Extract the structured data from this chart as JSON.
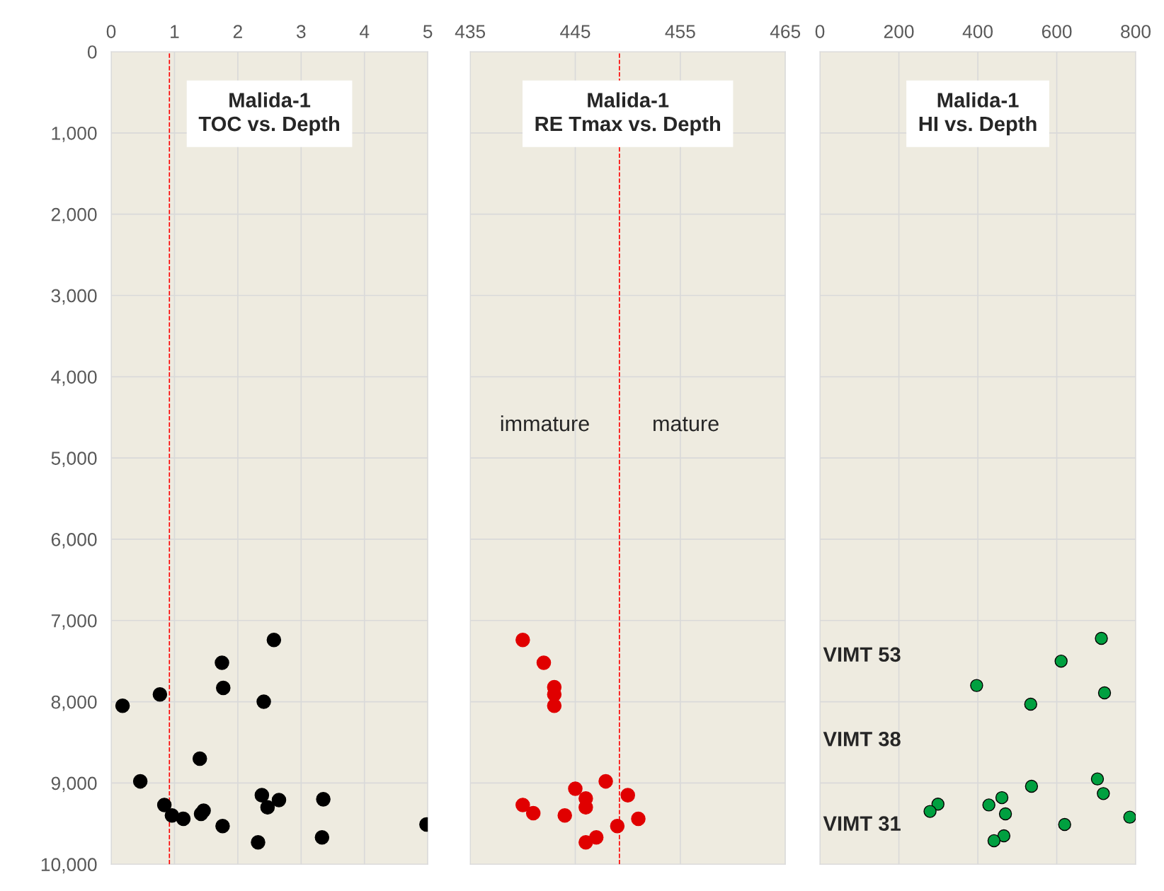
{
  "chart_data": [
    {
      "type": "scatter",
      "title": "Malida-1\nTOC vs. Depth",
      "series": [
        {
          "color": "#000000",
          "x": [
            2.57,
            1.75,
            1.77,
            0.77,
            0.18,
            2.41,
            1.4,
            0.46,
            2.38,
            2.65,
            3.35,
            2.47,
            0.84,
            0.96,
            1.14,
            1.46,
            1.42,
            1.76,
            2.32,
            3.33,
            4.98
          ],
          "values": [
            7240,
            7520,
            7830,
            7910,
            8050,
            8000,
            8700,
            8980,
            9150,
            9210,
            9200,
            9300,
            9270,
            9400,
            9440,
            9340,
            9380,
            9530,
            9730,
            9670,
            9510
          ]
        }
      ],
      "xlim": [
        0,
        5
      ],
      "xticks": [
        0,
        1,
        2,
        3,
        4,
        5
      ],
      "ylim": [
        10000,
        0
      ],
      "yticks": [
        0,
        {
          "value": 1000,
          "label": "1,000"
        },
        {
          "value": 2000,
          "label": "2,000"
        },
        {
          "value": 3000,
          "label": "3,000"
        },
        {
          "value": 4000,
          "label": "4,000"
        },
        {
          "value": 5000,
          "label": "5,000"
        },
        {
          "value": 6000,
          "label": "6,000"
        },
        {
          "value": 7000,
          "label": "7,000"
        },
        {
          "value": 8000,
          "label": "8,000"
        },
        {
          "value": 9000,
          "label": "9,000"
        },
        {
          "value": 10000,
          "label": "10,000"
        }
      ],
      "ref_lines": [
        {
          "axis": "x",
          "value": 0.92,
          "color": "#ff0000",
          "line_style": "dashed"
        }
      ],
      "grid": true,
      "marker": "circle",
      "legend": false
    },
    {
      "type": "scatter",
      "title": "Malida-1\nRE Tmax vs. Depth",
      "series": [
        {
          "color": "#e00000",
          "x": [
            440,
            442,
            443,
            443,
            443,
            447.9,
            445,
            446,
            446,
            450,
            440,
            441,
            444,
            451,
            449,
            447,
            446
          ],
          "values": [
            7240,
            7520,
            7820,
            7910,
            8050,
            8980,
            9070,
            9190,
            9300,
            9150,
            9270,
            9370,
            9400,
            9440,
            9530,
            9670,
            9730
          ]
        }
      ],
      "xlim": [
        435,
        465
      ],
      "xticks": [
        435,
        445,
        455,
        465
      ],
      "ylim": [
        10000,
        0
      ],
      "yticks": [
        0,
        1000,
        2000,
        3000,
        4000,
        5000,
        6000,
        7000,
        8000,
        9000,
        10000
      ],
      "tick_labels": "x",
      "ref_lines": [
        {
          "axis": "x",
          "value": 449.2,
          "color": "#ff0000",
          "line_style": "dashed"
        }
      ],
      "annotations": [
        "immature",
        "mature"
      ],
      "grid": true,
      "marker": "circle",
      "legend": false
    },
    {
      "type": "scatter",
      "title": "Malida-1\nHI vs. Depth",
      "series": [
        {
          "color": "#00a040",
          "x": [
            713,
            611,
            397,
            721,
            534,
            703,
            536,
            718,
            461,
            299,
            279,
            428,
            470,
            785,
            620,
            466,
            441
          ],
          "values": [
            7220,
            7500,
            7800,
            7890,
            8030,
            8950,
            9040,
            9130,
            9180,
            9260,
            9350,
            9270,
            9380,
            9420,
            9510,
            9650,
            9710
          ]
        }
      ],
      "xlim": [
        0,
        800
      ],
      "xticks": [
        0,
        200,
        400,
        600,
        800
      ],
      "ylim": [
        10000,
        0
      ],
      "yticks": [
        0,
        1000,
        2000,
        3000,
        4000,
        5000,
        6000,
        7000,
        8000,
        9000,
        10000
      ],
      "tick_labels": "x",
      "annotations": [
        "VIMT 53",
        "VIMT 38",
        "VIMT 31"
      ],
      "grid": true,
      "marker": "circle",
      "legend": false
    }
  ]
}
